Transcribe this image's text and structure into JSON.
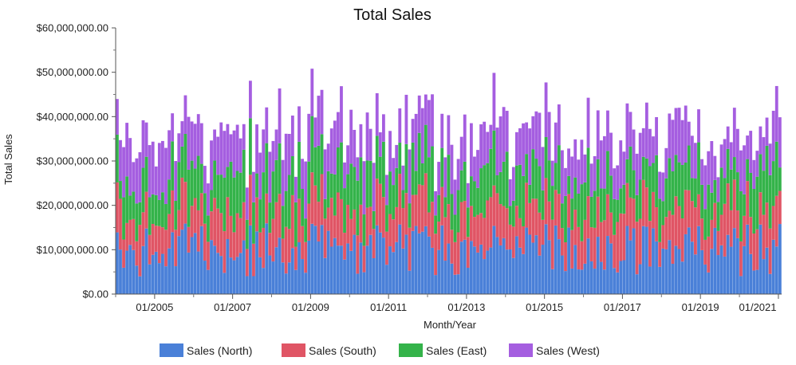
{
  "chart_data": {
    "type": "bar",
    "stacked": true,
    "title": "Total Sales",
    "xlabel": "Month/Year",
    "ylabel": "Total Sales",
    "ylim": [
      0,
      60000000
    ],
    "yticks": [
      "$0.00",
      "$10,000,000.00",
      "$20,000,000.00",
      "$30,000,000.00",
      "$40,000,000.00",
      "$50,000,000.00",
      "$60,000,000.00"
    ],
    "xticks": [
      "01/2005",
      "01/2007",
      "01/2009",
      "01/2011",
      "01/2013",
      "01/2015",
      "01/2017",
      "01/2019",
      "01/2021"
    ],
    "x_start": "01/2004",
    "x_end": "01/2021",
    "months": 205,
    "grid": false,
    "legend_position": "bottom",
    "series": [
      {
        "name": "Sales (North)",
        "color": "#4a80d8",
        "range": [
          4000000,
          16000000
        ]
      },
      {
        "name": "Sales (South)",
        "color": "#e05565",
        "range": [
          5000000,
          12000000
        ]
      },
      {
        "name": "Sales (East)",
        "color": "#34b34a",
        "range": [
          4000000,
          13000000
        ]
      },
      {
        "name": "Sales (West)",
        "color": "#a55ee0",
        "range": [
          5000000,
          13000000
        ]
      }
    ]
  }
}
